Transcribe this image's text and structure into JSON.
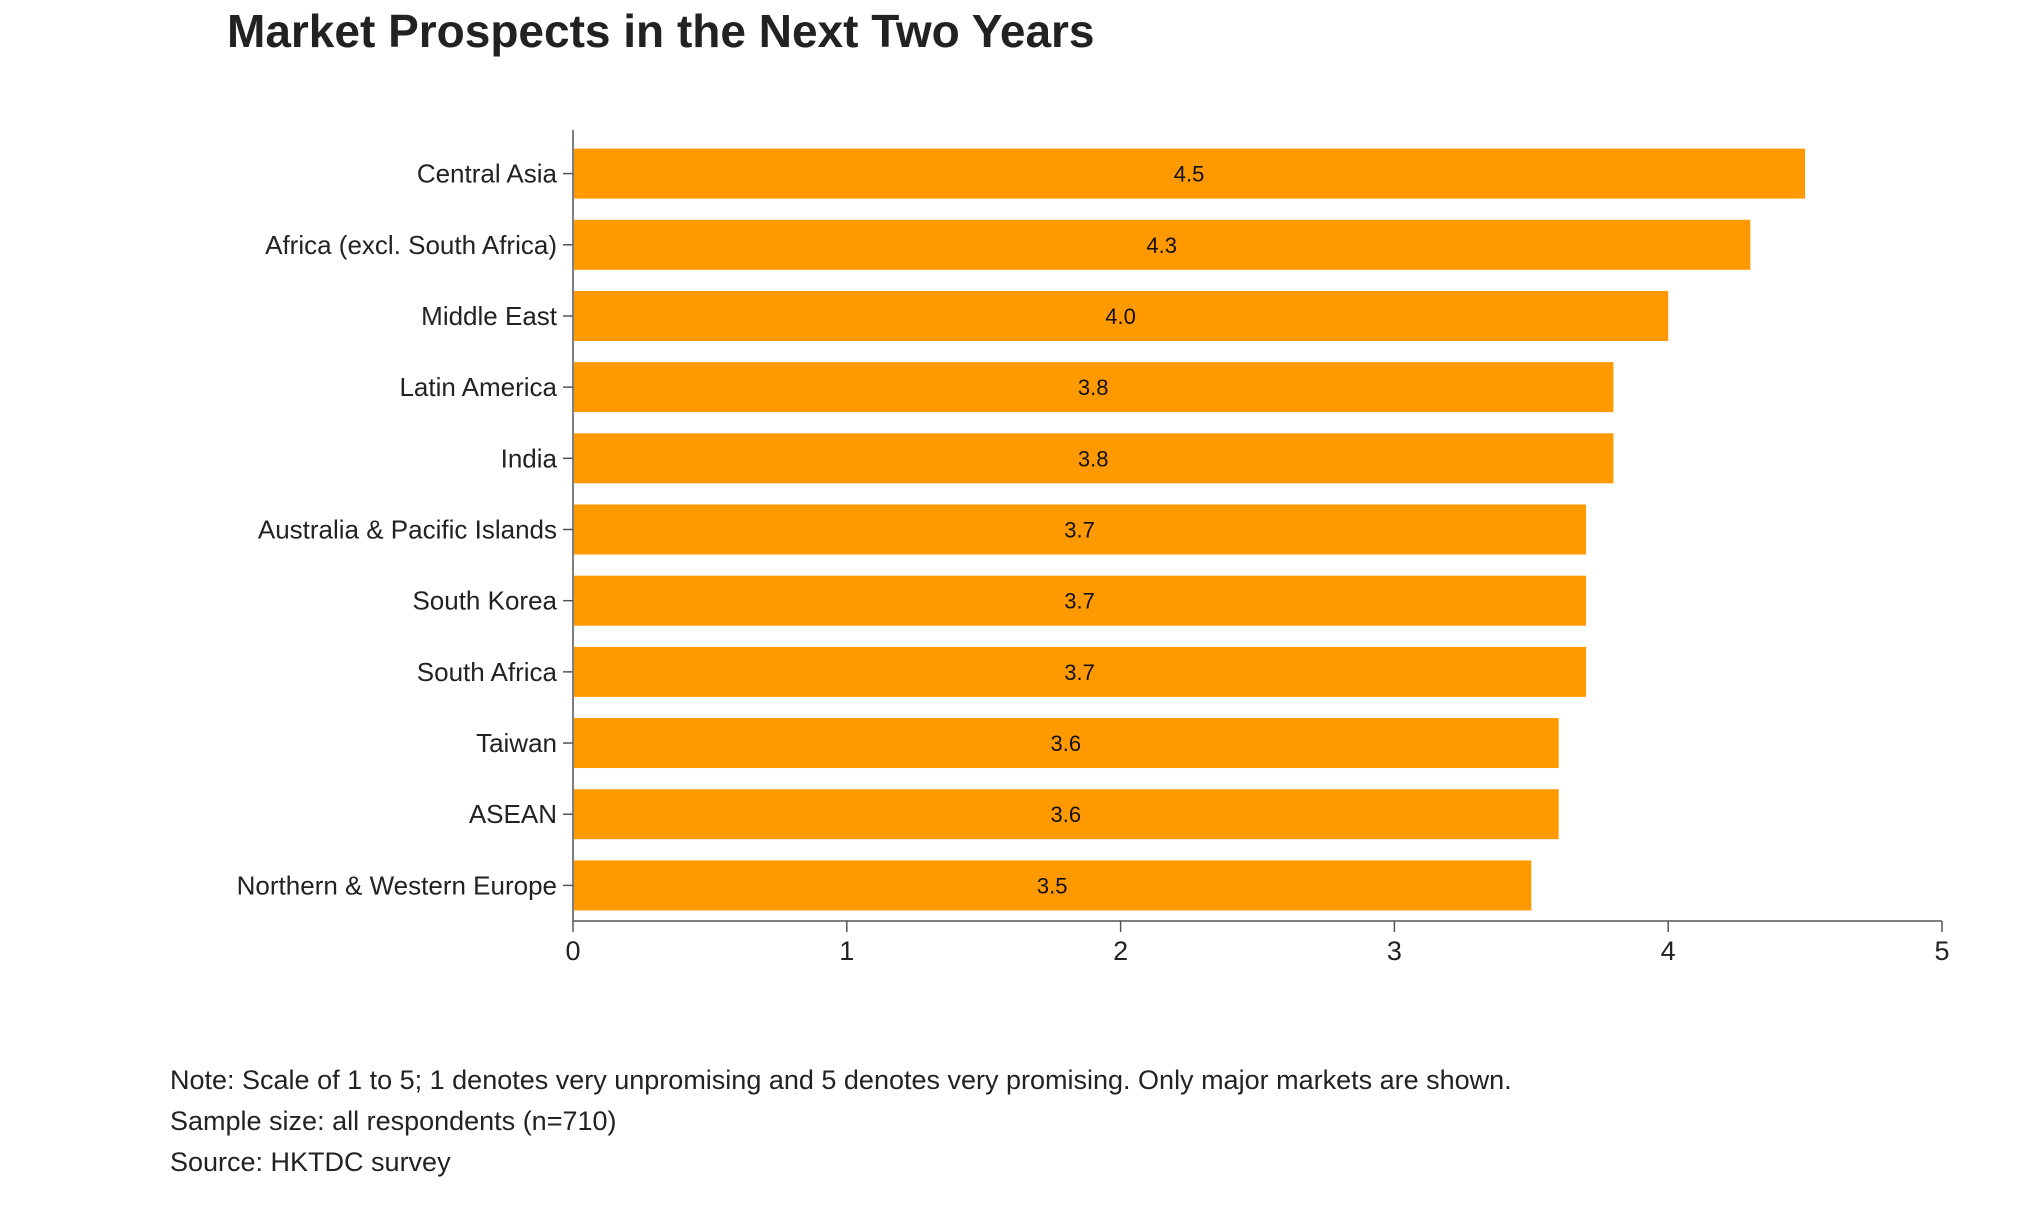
{
  "chart_data": {
    "type": "bar",
    "orientation": "horizontal",
    "title": "Market Prospects in the Next Two Years",
    "categories": [
      "Central Asia",
      "Africa (excl. South Africa)",
      "Middle East",
      "Latin America",
      "India",
      "Australia & Pacific Islands",
      "South Korea",
      "South Africa",
      "Taiwan",
      "ASEAN",
      "Northern & Western Europe"
    ],
    "values": [
      4.5,
      4.3,
      4.0,
      3.8,
      3.8,
      3.7,
      3.7,
      3.7,
      3.6,
      3.6,
      3.5
    ],
    "data_labels": [
      "4.5",
      "4.3",
      "4.0",
      "3.8",
      "3.8",
      "3.7",
      "3.7",
      "3.7",
      "3.6",
      "3.6",
      "3.5"
    ],
    "xlim": [
      0,
      5
    ],
    "x_ticks": [
      "0",
      "1",
      "2",
      "3",
      "4",
      "5"
    ],
    "xlabel": "",
    "ylabel": "",
    "grid": false,
    "bar_color": "#ff9900"
  },
  "notes": {
    "note": "Note: Scale of 1 to 5; 1 denotes very unpromising and 5 denotes very promising. Only major markets are shown.",
    "sample": "Sample size: all respondents (n=710)",
    "source": "Source: HKTDC survey"
  }
}
